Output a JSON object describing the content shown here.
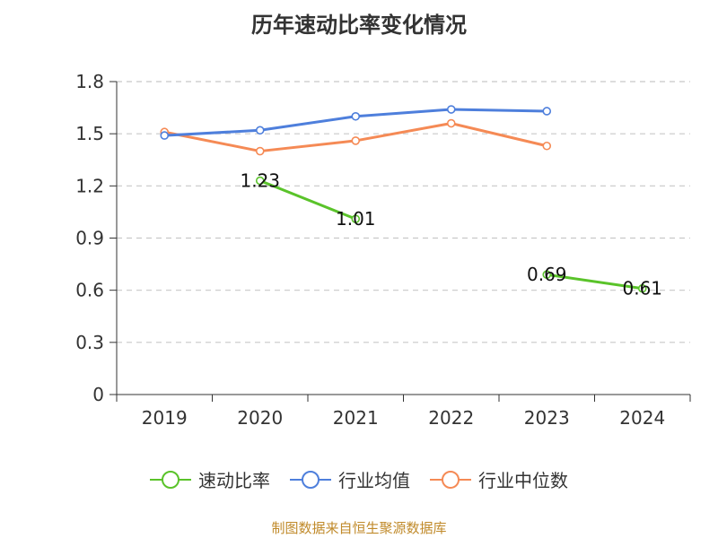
{
  "title": "历年速动比率变化情况",
  "footer": "制图数据来自恒生聚源数据库",
  "legend": [
    {
      "name": "速动比率",
      "color": "#5ac32a"
    },
    {
      "name": "行业均值",
      "color": "#4e7fdc"
    },
    {
      "name": "行业中位数",
      "color": "#f58a55"
    }
  ],
  "chart_data": {
    "type": "line",
    "title": "历年速动比率变化情况",
    "categories": [
      "2019",
      "2020",
      "2021",
      "2022",
      "2023",
      "2024"
    ],
    "ylim": [
      0,
      1.8
    ],
    "yticks": [
      "0",
      "0.3",
      "0.6",
      "0.9",
      "1.2",
      "1.5",
      "1.8"
    ],
    "grid": true,
    "legend_position": "bottom",
    "series": [
      {
        "name": "速动比率",
        "color": "#5ac32a",
        "values": [
          null,
          1.23,
          1.01,
          null,
          0.69,
          0.61
        ],
        "labels": [
          "",
          "1.23",
          "1.01",
          "",
          "0.69",
          "0.61"
        ]
      },
      {
        "name": "行业均值",
        "color": "#4e7fdc",
        "values": [
          1.49,
          1.52,
          1.6,
          1.64,
          1.63,
          null
        ]
      },
      {
        "name": "行业中位数",
        "color": "#f58a55",
        "values": [
          1.51,
          1.4,
          1.46,
          1.56,
          1.43,
          null
        ]
      }
    ]
  }
}
